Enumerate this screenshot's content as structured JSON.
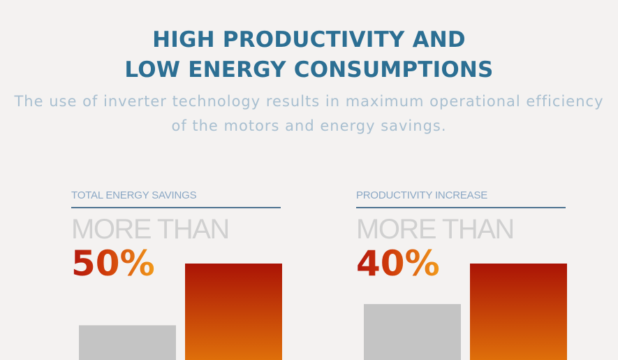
{
  "header": {
    "title_line1": "HIGH PRODUCTIVITY AND",
    "title_line2": "LOW ENERGY CONSUMPTIONS",
    "subtitle_line1": "The use of inverter technology results in maximum operational efficiency",
    "subtitle_line2": "of the motors and energy savings."
  },
  "colors": {
    "title": "#2c6f93",
    "subtitle": "#a8bfd0",
    "baseline_bar": "#c4c4c4",
    "highlight_bar_top": "#aa1306",
    "highlight_bar_bottom": "#df6f0a"
  },
  "chart_data": [
    {
      "type": "bar",
      "title": "TOTAL ENERGY SAVINGS",
      "kicker": "MORE THAN",
      "headline": "50%",
      "categories": [
        "",
        ""
      ],
      "values": [
        0.36,
        1.0
      ],
      "ylim": [
        0,
        1.0
      ]
    },
    {
      "type": "bar",
      "title": "PRODUCTIVITY INCREASE",
      "kicker": "MORE THAN",
      "headline": "40%",
      "categories": [
        "",
        ""
      ],
      "values": [
        0.58,
        1.0
      ],
      "ylim": [
        0,
        1.0
      ]
    }
  ]
}
